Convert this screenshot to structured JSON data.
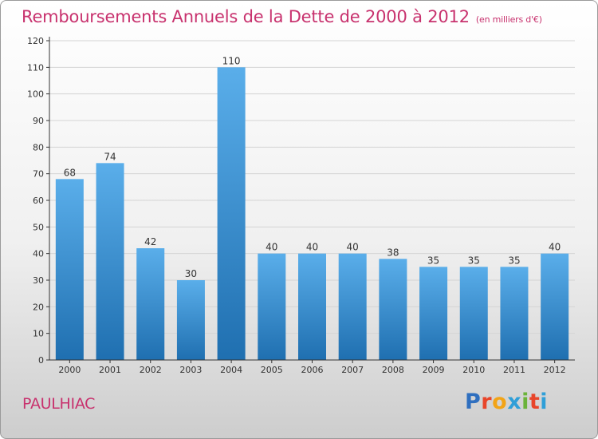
{
  "title": "Remboursements Annuels de la Dette de 2000 à 2012",
  "unit": "(en milliers d'€)",
  "commune": "PAULHIAC",
  "logo": {
    "letters": [
      "P",
      "r",
      "o",
      "x",
      "i",
      "t",
      "i"
    ],
    "colors": [
      "#2f6fbf",
      "#e8452a",
      "#f2a417",
      "#2f9fd8",
      "#6bb33a",
      "#e8452a",
      "#2f9fd8"
    ]
  },
  "colors": {
    "title": "#c8326e",
    "bar_light": "#5aaeea",
    "bar_dark": "#1f6fb0",
    "grid": "#d4d4d4",
    "axis": "#333333"
  },
  "chart_data": {
    "type": "bar",
    "categories": [
      "2000",
      "2001",
      "2002",
      "2003",
      "2004",
      "2005",
      "2006",
      "2007",
      "2008",
      "2009",
      "2010",
      "2011",
      "2012"
    ],
    "values": [
      68,
      74,
      42,
      30,
      110,
      40,
      40,
      40,
      38,
      35,
      35,
      35,
      40
    ],
    "yticks": [
      0,
      10,
      20,
      30,
      40,
      50,
      60,
      70,
      80,
      90,
      100,
      110,
      120
    ],
    "ylim": [
      0,
      120
    ],
    "grid": true
  }
}
